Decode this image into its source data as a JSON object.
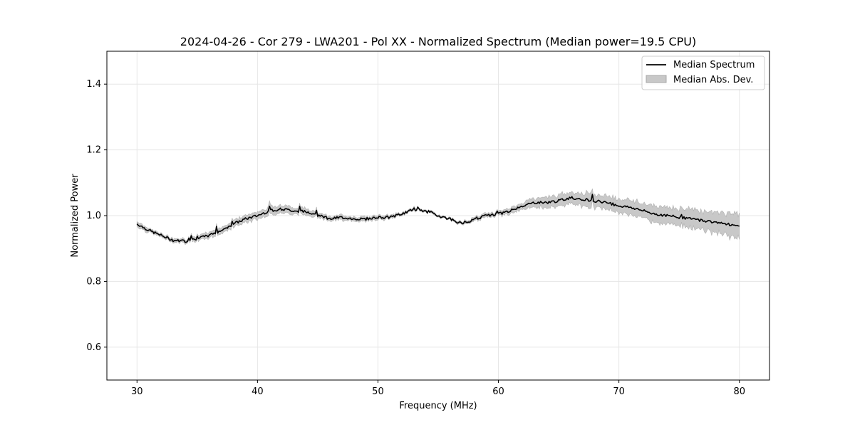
{
  "chart_data": {
    "type": "line",
    "title": "2024-04-26 - Cor 279 - LWA201 - Pol XX - Normalized Spectrum (Median power=19.5 CPU)",
    "xlabel": "Frequency (MHz)",
    "ylabel": "Normalized Power",
    "xlim": [
      27.5,
      82.5
    ],
    "ylim": [
      0.5,
      1.5
    ],
    "xticks": [
      30,
      40,
      50,
      60,
      70,
      80
    ],
    "yticks": [
      0.6,
      0.8,
      1.0,
      1.2,
      1.4
    ],
    "xtick_labels": [
      "30",
      "40",
      "50",
      "60",
      "70",
      "80"
    ],
    "ytick_labels": [
      "0.6",
      "0.8",
      "1.0",
      "1.2",
      "1.4"
    ],
    "grid": true,
    "legend": {
      "placement": "top-right",
      "entries": [
        "Median Spectrum",
        "Median Abs. Dev."
      ]
    },
    "series": [
      {
        "name": "Median Spectrum",
        "style": "line",
        "color": "#000000",
        "x": [
          30,
          31,
          32,
          33,
          34,
          35,
          36,
          37,
          38,
          39,
          40,
          41,
          42,
          43,
          44,
          45,
          46,
          47,
          48,
          49,
          50,
          51,
          52,
          53,
          54,
          55,
          56,
          57,
          58,
          59,
          60,
          61,
          62,
          63,
          64,
          65,
          66,
          67,
          68,
          69,
          70,
          71,
          72,
          73,
          74,
          75,
          76,
          77,
          78,
          79,
          80
        ],
        "values": [
          0.975,
          0.955,
          0.94,
          0.925,
          0.922,
          0.93,
          0.94,
          0.955,
          0.975,
          0.99,
          1.0,
          1.015,
          1.02,
          1.015,
          1.012,
          1.005,
          0.99,
          0.995,
          0.99,
          0.99,
          0.995,
          0.995,
          1.005,
          1.02,
          1.015,
          1.0,
          0.99,
          0.975,
          0.99,
          1.0,
          1.005,
          1.015,
          1.03,
          1.04,
          1.04,
          1.045,
          1.055,
          1.05,
          1.045,
          1.04,
          1.03,
          1.025,
          1.015,
          1.005,
          1.0,
          0.995,
          0.99,
          0.985,
          0.98,
          0.975,
          0.965
        ]
      },
      {
        "name": "Median Abs. Dev.",
        "style": "band",
        "color": "#c8c8c8",
        "x": [
          30,
          31,
          32,
          33,
          34,
          35,
          36,
          37,
          38,
          39,
          40,
          41,
          42,
          43,
          44,
          45,
          46,
          47,
          48,
          49,
          50,
          51,
          52,
          53,
          54,
          55,
          56,
          57,
          58,
          59,
          60,
          61,
          62,
          63,
          64,
          65,
          66,
          67,
          68,
          69,
          70,
          71,
          72,
          73,
          74,
          75,
          76,
          77,
          78,
          79,
          80
        ],
        "deviation": [
          0.008,
          0.006,
          0.005,
          0.005,
          0.006,
          0.007,
          0.008,
          0.009,
          0.01,
          0.01,
          0.011,
          0.012,
          0.012,
          0.01,
          0.009,
          0.008,
          0.006,
          0.007,
          0.006,
          0.006,
          0.006,
          0.005,
          0.004,
          0.004,
          0.003,
          0.003,
          0.003,
          0.004,
          0.005,
          0.006,
          0.006,
          0.008,
          0.01,
          0.013,
          0.015,
          0.016,
          0.018,
          0.019,
          0.019,
          0.019,
          0.02,
          0.021,
          0.022,
          0.023,
          0.024,
          0.025,
          0.027,
          0.028,
          0.03,
          0.032,
          0.034
        ]
      }
    ]
  }
}
